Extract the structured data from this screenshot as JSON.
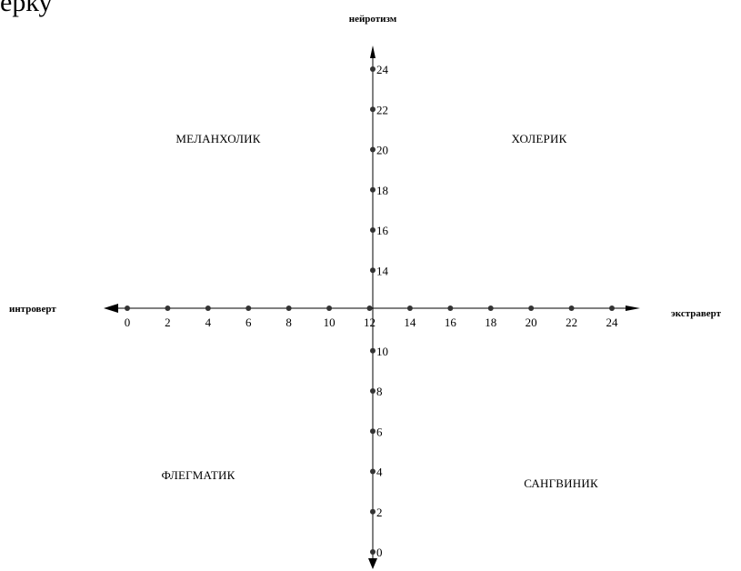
{
  "header_text": "ерку",
  "axes": {
    "vertical_title": "нейротизм",
    "left_title": "интроверт",
    "right_title": "экстраверт"
  },
  "quadrants": {
    "top_left": "МЕЛАНХОЛИК",
    "top_right": "ХОЛЕРИК",
    "bottom_left": "ФЛЕГМАТИК",
    "bottom_right": "САНГВИНИК"
  },
  "chart_data": {
    "type": "scatter",
    "x_axis": {
      "min": 0,
      "max": 24,
      "ticks": [
        0,
        2,
        4,
        6,
        8,
        10,
        12,
        14,
        16,
        18,
        20,
        22,
        24
      ],
      "tick_labels": [
        "0",
        "2",
        "4",
        "6",
        "8",
        "10",
        "12",
        "14",
        "16",
        "18",
        "20",
        "22",
        "24"
      ]
    },
    "y_axis": {
      "min": 0,
      "max": 24,
      "ticks": [
        0,
        2,
        4,
        6,
        8,
        10,
        14,
        16,
        18,
        20,
        22,
        24
      ],
      "tick_labels": [
        "0",
        "2",
        "4",
        "6",
        "8",
        "10",
        "14",
        "16",
        "18",
        "20",
        "22",
        "24"
      ]
    },
    "grid": false,
    "legend": "none"
  },
  "colors": {
    "ink": "#000000",
    "point": "#333333",
    "background": "#ffffff"
  }
}
